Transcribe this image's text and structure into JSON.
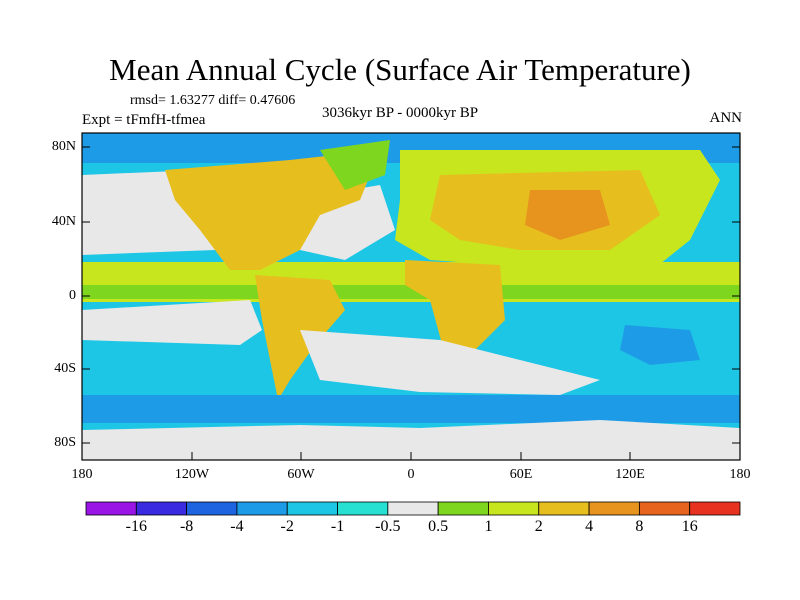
{
  "title": "Mean Annual Cycle (Surface Air Temperature)",
  "stats": "rmsd= 1.63277 diff= 0.47606",
  "experiment": "Expt = tFmfH-tfmea",
  "period": "3036kyr BP - 0000kyr BP",
  "season": "ANN",
  "lat_labels": [
    "80N",
    "40N",
    "0",
    "40S",
    "80S"
  ],
  "lon_labels": [
    "180",
    "120W",
    "60W",
    "0",
    "60E",
    "120E",
    "180"
  ],
  "colorbar": {
    "labels": [
      "-16",
      "-8",
      "-4",
      "-2",
      "-1",
      "-0.5",
      "0.5",
      "1",
      "2",
      "4",
      "8",
      "16"
    ],
    "colors": [
      "#9a14e6",
      "#3a2be0",
      "#1e64e0",
      "#1e9be6",
      "#1ec6e6",
      "#27e0d2",
      "#e8e8e8",
      "#7fd61e",
      "#c8e61e",
      "#e6be1e",
      "#e6941e",
      "#e6641e",
      "#e6321e"
    ]
  },
  "field_colors": {
    "ocean_cold": "#1ec6e6",
    "ocean_deep": "#1e9be6",
    "neutral": "#e8e8e8",
    "warm1": "#7fd61e",
    "warm2": "#c8e61e",
    "warm3": "#e6be1e",
    "warm4": "#e6941e"
  }
}
